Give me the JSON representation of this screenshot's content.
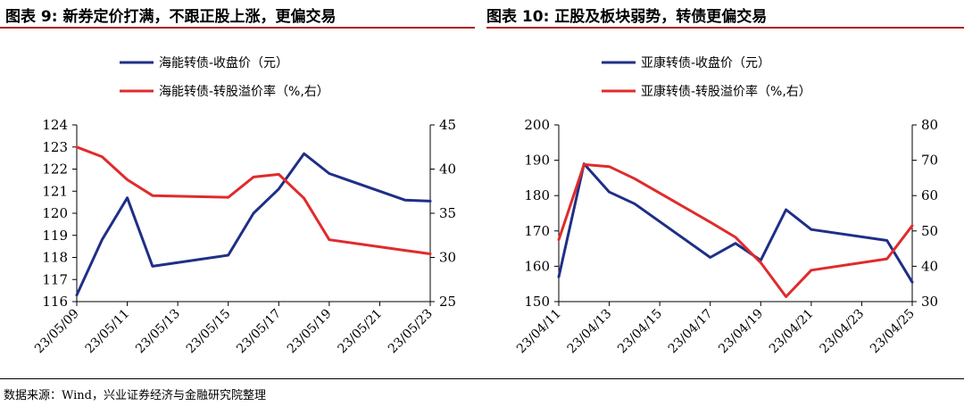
{
  "header": {
    "left_title": "图表 9:  新券定价打满，不跟正股上涨，更偏交易",
    "right_title": "图表 10:  正股及板块弱势，转债更偏交易"
  },
  "source": "数据来源：Wind，兴业证券经济与金融研究院整理",
  "colors": {
    "primary": "#1f2f86",
    "secondary": "#e02b2b",
    "title_rule": "#b01e1e",
    "axis": "#000000"
  },
  "chart_data": [
    {
      "type": "line",
      "title": "图表 9:  新券定价打满，不跟正股上涨，更偏交易",
      "x": [
        "23/05/09",
        "23/05/10",
        "23/05/11",
        "23/05/12",
        "23/05/15",
        "23/05/16",
        "23/05/17",
        "23/05/18",
        "23/05/19",
        "23/05/22",
        "23/05/23"
      ],
      "x_tick_labels": [
        "23/05/09",
        "23/05/11",
        "23/05/13",
        "23/05/15",
        "23/05/17",
        "23/05/19",
        "23/05/21",
        "23/05/23"
      ],
      "series": [
        {
          "name": "海能转债-收盘价（元）",
          "axis": "left",
          "color": "#1f2f86",
          "points": [
            [
              "23/05/09",
              116.3
            ],
            [
              "23/05/10",
              118.8
            ],
            [
              "23/05/11",
              120.7
            ],
            [
              "23/05/12",
              117.6
            ],
            [
              "23/05/15",
              118.1
            ],
            [
              "23/05/16",
              120.0
            ],
            [
              "23/05/17",
              121.1
            ],
            [
              "23/05/18",
              122.7
            ],
            [
              "23/05/19",
              121.8
            ],
            [
              "23/05/22",
              120.6
            ],
            [
              "23/05/23",
              120.55
            ]
          ]
        },
        {
          "name": "海能转债-转股溢价率（%,右）",
          "axis": "right",
          "color": "#e02b2b",
          "points": [
            [
              "23/05/09",
              42.5
            ],
            [
              "23/05/10",
              41.4
            ],
            [
              "23/05/11",
              38.8
            ],
            [
              "23/05/12",
              37.0
            ],
            [
              "23/05/15",
              36.8
            ],
            [
              "23/05/16",
              39.1
            ],
            [
              "23/05/17",
              39.4
            ],
            [
              "23/05/18",
              36.7
            ],
            [
              "23/05/19",
              32.0
            ],
            [
              "23/05/22",
              30.8
            ],
            [
              "23/05/23",
              30.4
            ]
          ]
        }
      ],
      "ylim_left": [
        116,
        124
      ],
      "yticks_left": [
        116,
        117,
        118,
        119,
        120,
        121,
        122,
        123,
        124
      ],
      "ylim_right": [
        25,
        45
      ],
      "yticks_right": [
        25,
        30,
        35,
        40,
        45
      ],
      "legend_position": "top-left"
    },
    {
      "type": "line",
      "title": "图表 10:  正股及板块弱势，转债更偏交易",
      "x": [
        "23/04/11",
        "23/04/12",
        "23/04/13",
        "23/04/14",
        "23/04/17",
        "23/04/18",
        "23/04/19",
        "23/04/20",
        "23/04/21",
        "23/04/24",
        "23/04/25"
      ],
      "x_tick_labels": [
        "23/04/11",
        "23/04/13",
        "23/04/15",
        "23/04/17",
        "23/04/19",
        "23/04/21",
        "23/04/23",
        "23/04/25"
      ],
      "series": [
        {
          "name": "亚康转债-收盘价（元）",
          "axis": "left",
          "color": "#1f2f86",
          "points": [
            [
              "23/04/11",
              157.0
            ],
            [
              "23/04/12",
              189.0
            ],
            [
              "23/04/13",
              181.0
            ],
            [
              "23/04/14",
              177.7
            ],
            [
              "23/04/17",
              162.5
            ],
            [
              "23/04/18",
              166.5
            ],
            [
              "23/04/19",
              161.7
            ],
            [
              "23/04/20",
              176.0
            ],
            [
              "23/04/21",
              170.4
            ],
            [
              "23/04/24",
              167.3
            ],
            [
              "23/04/25",
              155.5
            ]
          ]
        },
        {
          "name": "亚康转债-转股溢价率（%,右）",
          "axis": "right",
          "color": "#e02b2b",
          "points": [
            [
              "23/04/11",
              47.5
            ],
            [
              "23/04/12",
              68.8
            ],
            [
              "23/04/13",
              68.2
            ],
            [
              "23/04/14",
              64.8
            ],
            [
              "23/04/17",
              52.5
            ],
            [
              "23/04/18",
              48.2
            ],
            [
              "23/04/19",
              41.0
            ],
            [
              "23/04/20",
              31.4
            ],
            [
              "23/04/21",
              38.9
            ],
            [
              "23/04/24",
              42.1
            ],
            [
              "23/04/25",
              51.5
            ]
          ]
        }
      ],
      "ylim_left": [
        150,
        200
      ],
      "yticks_left": [
        150,
        160,
        170,
        180,
        190,
        200
      ],
      "ylim_right": [
        30,
        80
      ],
      "yticks_right": [
        30,
        40,
        50,
        60,
        70,
        80
      ],
      "legend_position": "top-left"
    }
  ]
}
